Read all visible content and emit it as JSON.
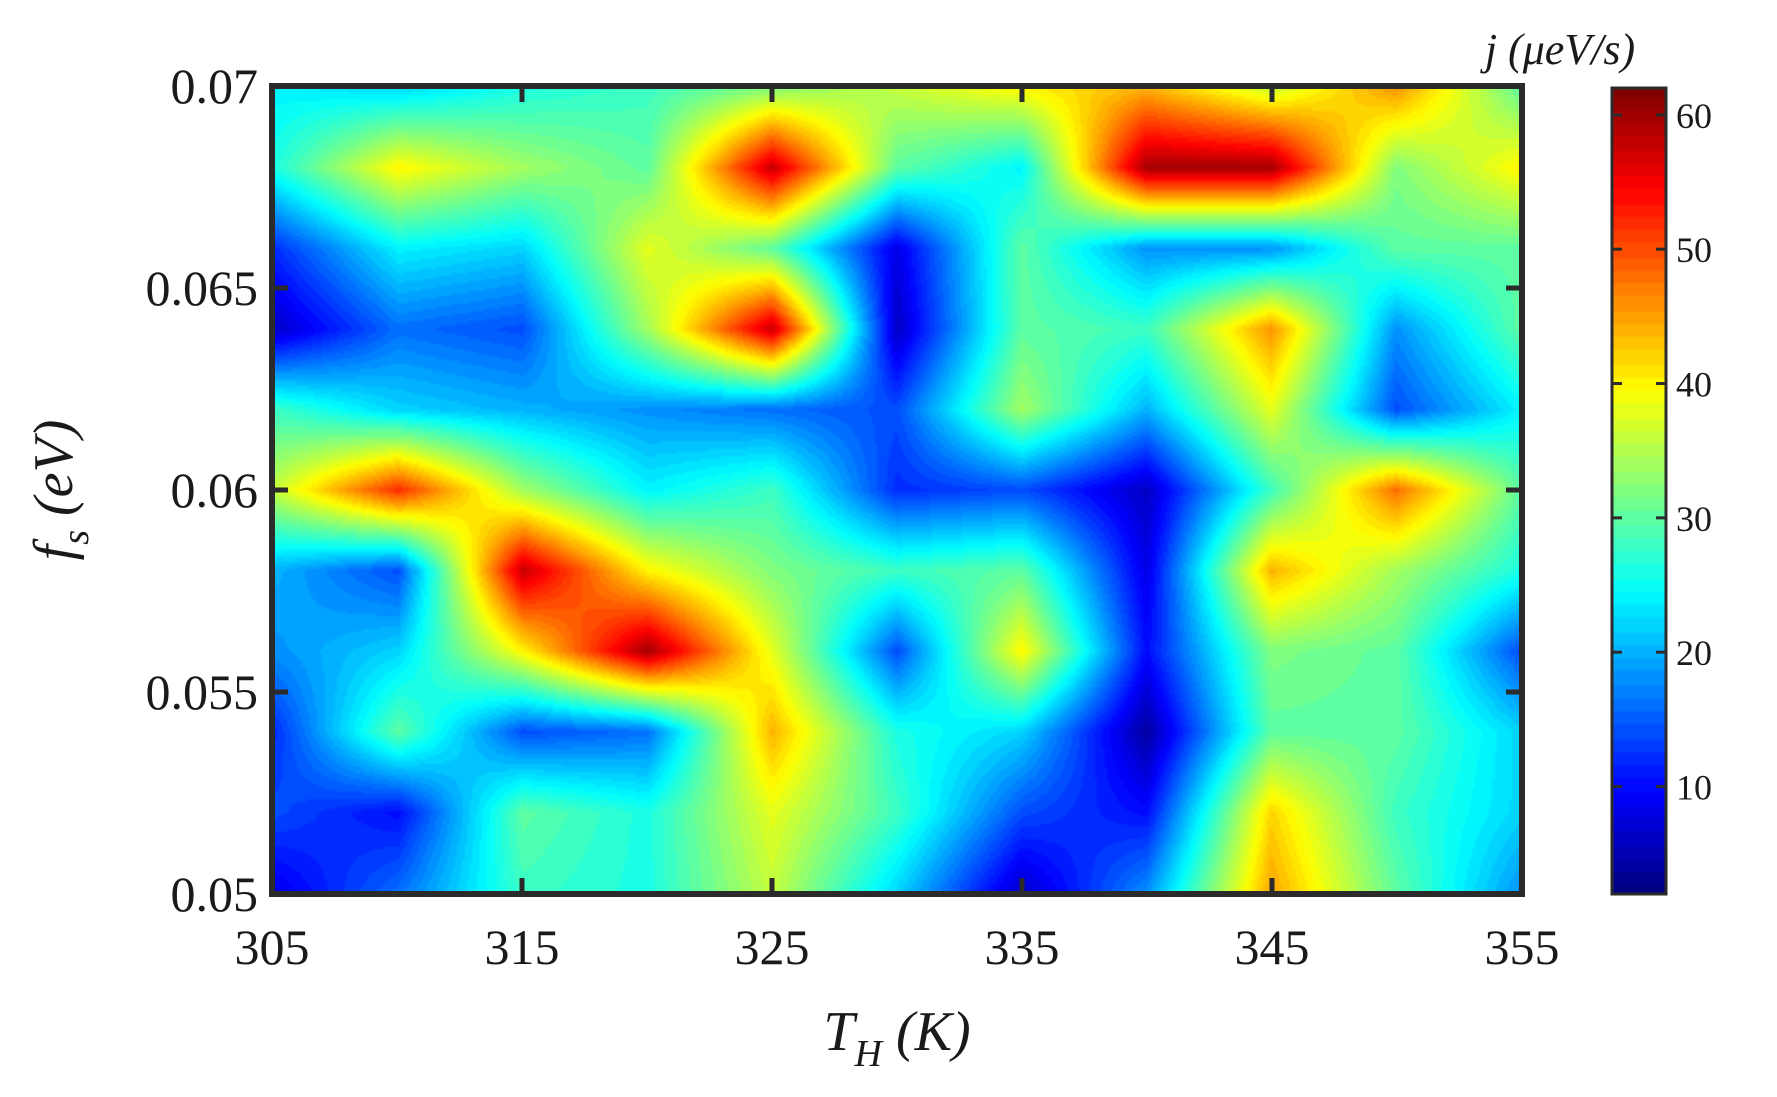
{
  "chart_data": {
    "type": "heatmap",
    "x": [
      305,
      310,
      315,
      320,
      325,
      330,
      335,
      340,
      345,
      350,
      355
    ],
    "y": [
      0.05,
      0.052,
      0.054,
      0.056,
      0.058,
      0.06,
      0.062,
      0.064,
      0.066,
      0.068,
      0.07
    ],
    "z": [
      [
        8,
        16,
        28,
        26,
        36,
        22,
        6,
        18,
        45,
        30,
        18
      ],
      [
        14,
        10,
        30,
        26,
        38,
        28,
        14,
        10,
        42,
        28,
        22
      ],
      [
        12,
        30,
        14,
        16,
        44,
        26,
        22,
        4,
        30,
        30,
        22
      ],
      [
        18,
        22,
        40,
        60,
        38,
        14,
        40,
        10,
        32,
        30,
        14
      ],
      [
        20,
        14,
        58,
        40,
        32,
        28,
        30,
        8,
        44,
        34,
        26
      ],
      [
        36,
        52,
        34,
        24,
        28,
        12,
        14,
        6,
        28,
        48,
        30
      ],
      [
        28,
        22,
        20,
        18,
        16,
        14,
        34,
        20,
        38,
        14,
        24
      ],
      [
        6,
        16,
        14,
        34,
        58,
        6,
        30,
        28,
        46,
        18,
        30
      ],
      [
        12,
        24,
        22,
        38,
        30,
        8,
        30,
        18,
        18,
        30,
        30
      ],
      [
        26,
        40,
        34,
        30,
        58,
        30,
        24,
        60,
        60,
        32,
        40
      ],
      [
        24,
        22,
        26,
        28,
        32,
        36,
        40,
        44,
        36,
        46,
        30
      ]
    ],
    "xlabel_main": "T",
    "xlabel_sub": "H",
    "xlabel_unit": " (K)",
    "ylabel_main": "f",
    "ylabel_sub": "s",
    "ylabel_unit": " (eV)",
    "colorbar_label": "j (μeV/s)",
    "x_ticks": [
      "305",
      "315",
      "325",
      "335",
      "345",
      "355"
    ],
    "y_ticks": [
      "0.05",
      "0.055",
      "0.06",
      "0.065",
      "0.07"
    ],
    "xlim": [
      305,
      355
    ],
    "ylim": [
      0.05,
      0.07
    ],
    "colorbar_range": [
      2,
      62
    ],
    "colorbar_ticks": [
      "10",
      "20",
      "30",
      "40",
      "50",
      "60"
    ],
    "colormap": "jet",
    "grid": false
  }
}
